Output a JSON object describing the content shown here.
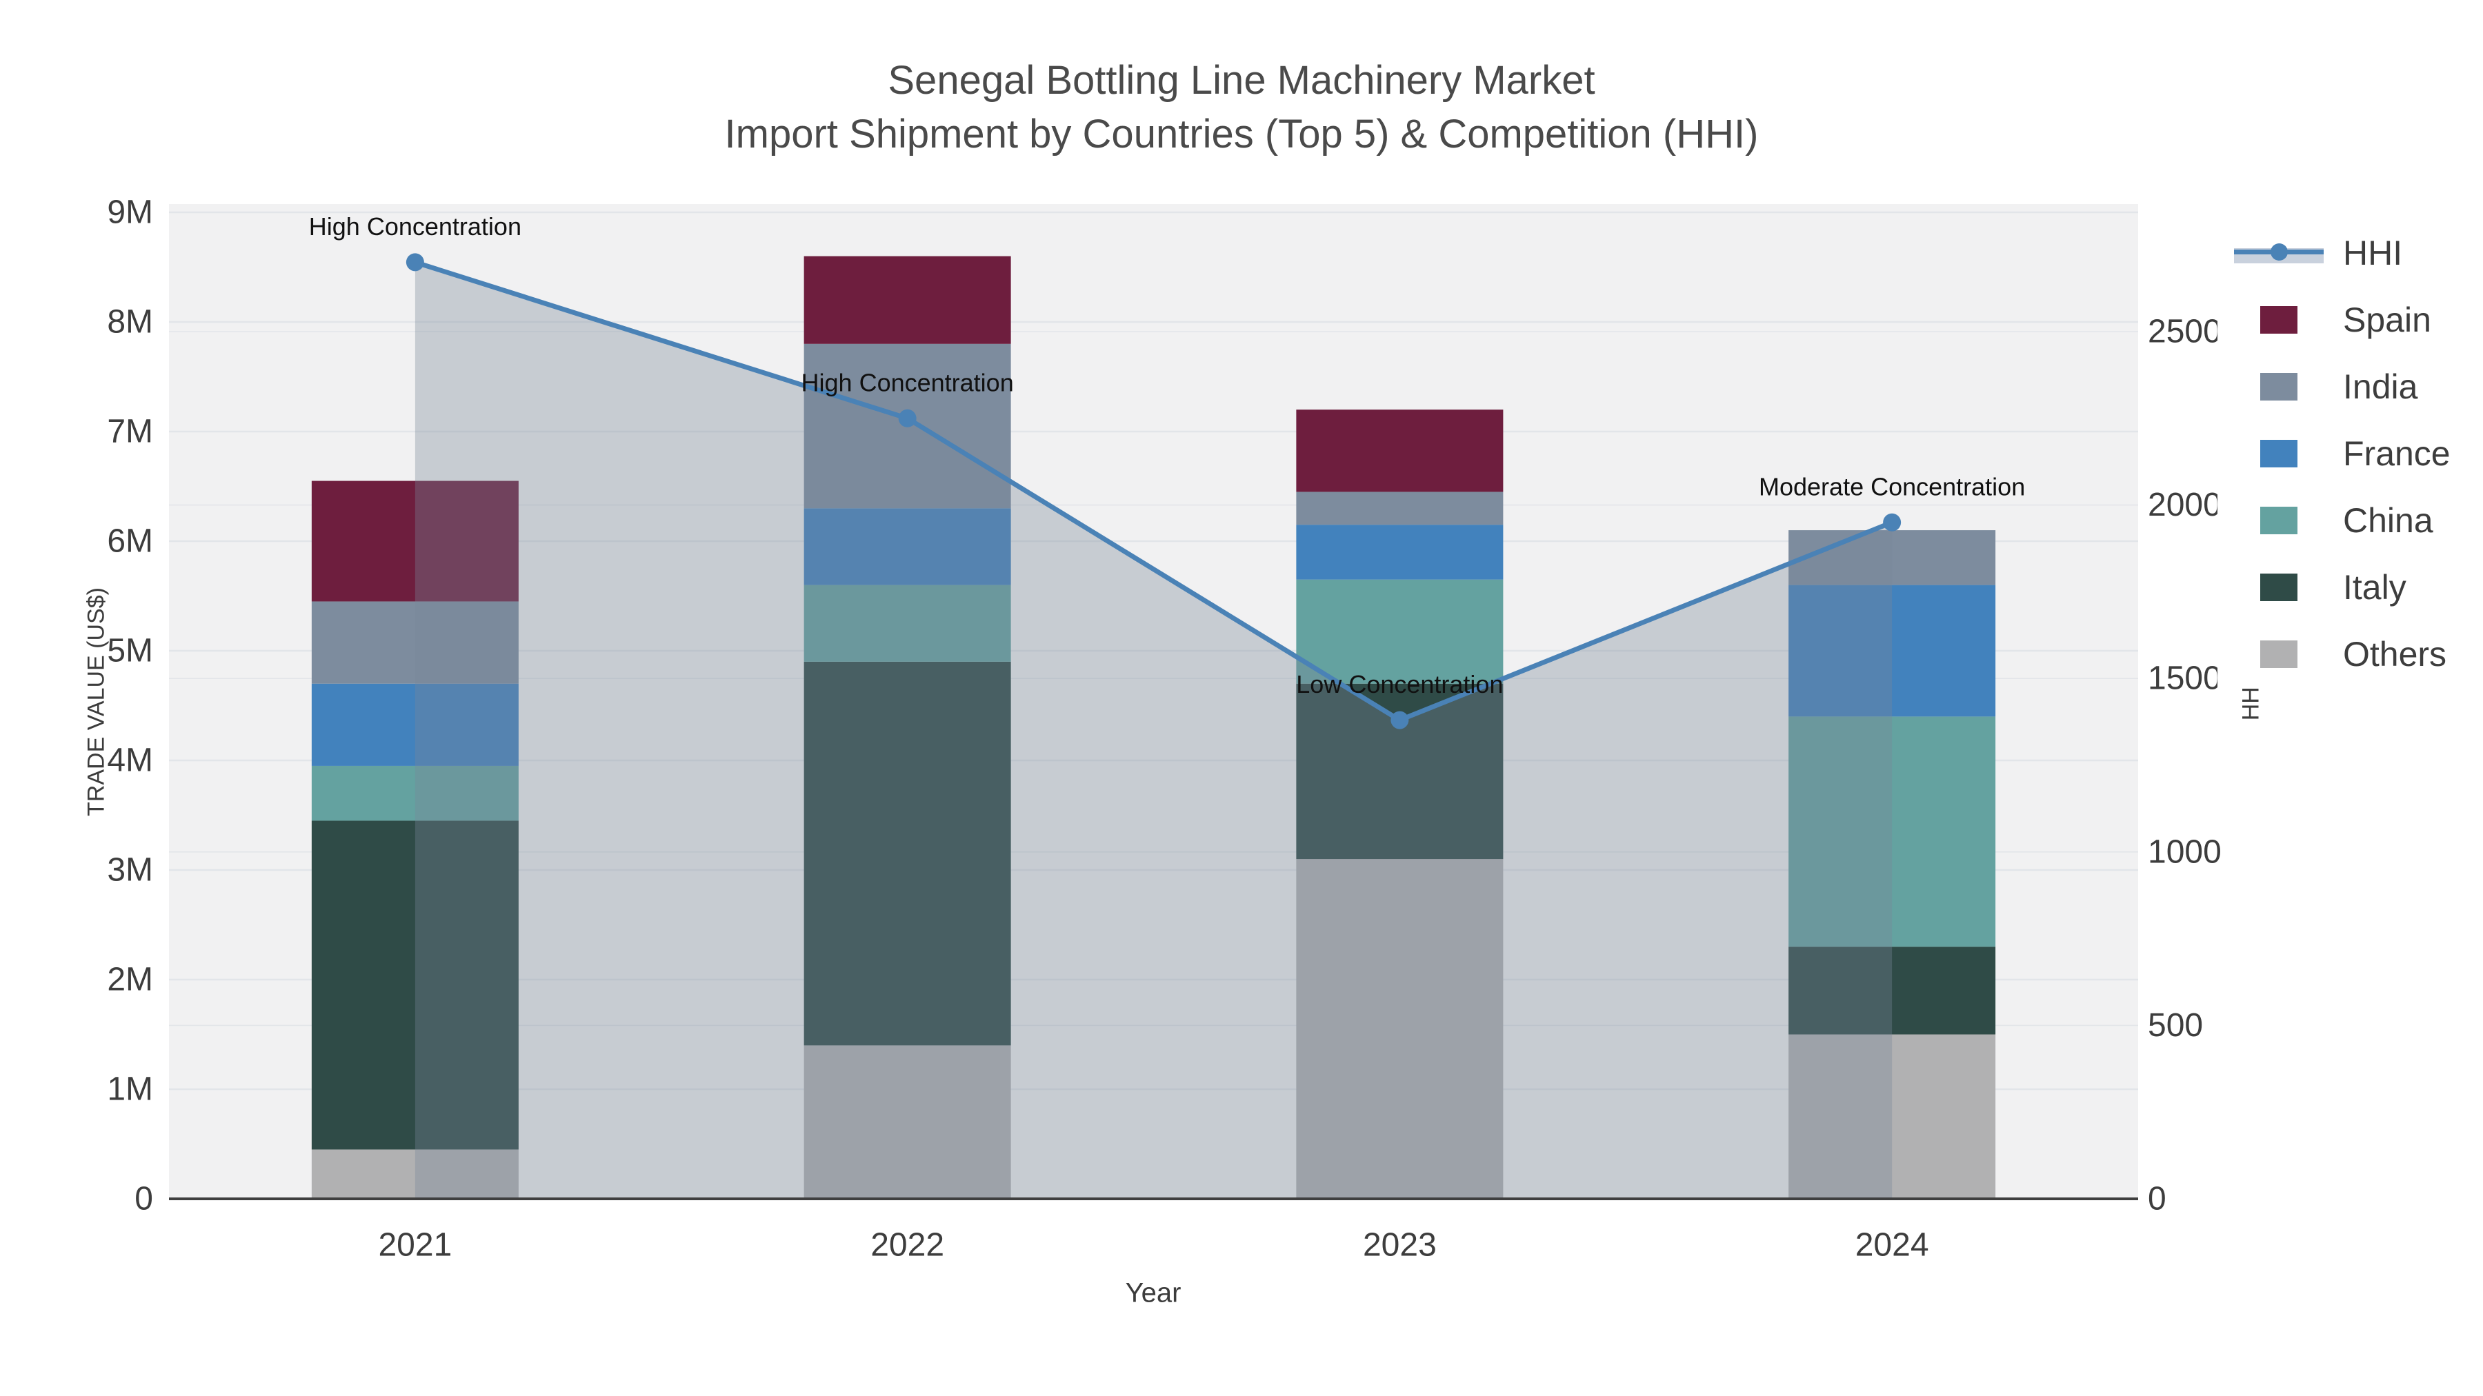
{
  "title": {
    "line1": "Senegal Bottling Line Machinery Market",
    "line2": "Import Shipment by Countries (Top 5) & Competition (HHI)"
  },
  "axes": {
    "y_left": {
      "title": "TRADE VALUE (US$)",
      "tick_labels": [
        "0",
        "1M",
        "2M",
        "3M",
        "4M",
        "5M",
        "6M",
        "7M",
        "8M",
        "9M"
      ]
    },
    "y_right": {
      "title": "HHI",
      "tick_labels": [
        "0",
        "500",
        "1000",
        "1500",
        "2000",
        "2500"
      ]
    },
    "x": {
      "title": "Year",
      "tick_labels": [
        "2021",
        "2022",
        "2023",
        "2024"
      ]
    }
  },
  "legend": {
    "items": [
      {
        "label": "HHI",
        "type": "line",
        "color": "#4a82b6",
        "band": "#c9d1dd"
      },
      {
        "label": "Spain",
        "type": "square",
        "color": "#6e1e3e"
      },
      {
        "label": "India",
        "type": "square",
        "color": "#7d8c9e"
      },
      {
        "label": "France",
        "type": "square",
        "color": "#4282bd"
      },
      {
        "label": "China",
        "type": "square",
        "color": "#64a2a0"
      },
      {
        "label": "Italy",
        "type": "square",
        "color": "#2f4b47"
      },
      {
        "label": "Others",
        "type": "square",
        "color": "#b1b1b2"
      }
    ]
  },
  "chart_data": {
    "type": "bar+line",
    "categories": [
      "2021",
      "2022",
      "2023",
      "2024"
    ],
    "stacked_bar_units": "US$ millions",
    "series": [
      {
        "name": "Others",
        "color": "#b1b1b2",
        "values": [
          0.45,
          1.4,
          3.1,
          1.5
        ]
      },
      {
        "name": "Italy",
        "color": "#2f4b47",
        "values": [
          3.0,
          3.5,
          1.6,
          0.8
        ]
      },
      {
        "name": "China",
        "color": "#64a2a0",
        "values": [
          0.5,
          0.7,
          0.95,
          2.1
        ]
      },
      {
        "name": "France",
        "color": "#4282bd",
        "values": [
          0.75,
          0.7,
          0.5,
          1.2
        ]
      },
      {
        "name": "India",
        "color": "#7d8c9e",
        "values": [
          0.75,
          1.5,
          0.3,
          0.5
        ]
      },
      {
        "name": "Spain",
        "color": "#6e1e3e",
        "values": [
          1.1,
          0.8,
          0.75,
          0
        ]
      }
    ],
    "stack_order": "bottom-to-top",
    "bar_totals_m": [
      6.55,
      8.6,
      7.2,
      6.1
    ],
    "line_series": {
      "name": "HHI",
      "axis": "right",
      "values": [
        2700,
        2250,
        1380,
        1950
      ],
      "color": "#4a82b6",
      "area_fill": "rgba(119,136,153,0.35)"
    },
    "annotations": [
      {
        "category": "2021",
        "text": "High Concentration"
      },
      {
        "category": "2022",
        "text": "High Concentration"
      },
      {
        "category": "2023",
        "text": "Low Concentration"
      },
      {
        "category": "2024",
        "text": "Moderate Concentration"
      }
    ],
    "ylim_left_m": [
      0,
      9
    ],
    "ylim_right": [
      0,
      2500
    ],
    "grid": "on",
    "legend_position": "right",
    "plot_bg": "#f1f1f2",
    "grid_color": "#e2e5e9",
    "axis_line_color": "#3f3f3f",
    "tick_color": "#3d3d3d",
    "annotation_color": "#111111"
  }
}
